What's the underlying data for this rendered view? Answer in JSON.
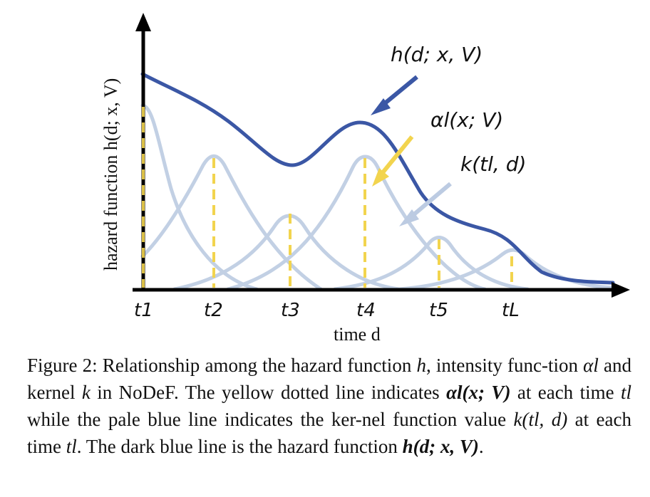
{
  "axes": {
    "y_label": "hazard function h(d; x, V)",
    "x_label": "time d"
  },
  "ticks": [
    "t1",
    "t2",
    "t3",
    "t4",
    "t5",
    "tL"
  ],
  "annotations": {
    "hazard": "h(d; x, V)",
    "intensity": "αl(x; V)",
    "kernel": "k(tl, d)"
  },
  "colors": {
    "hazard_line": "#3b57a5",
    "kernel_line": "#bccbe2",
    "intensity_line": "#f2d44e",
    "axis": "#000000"
  },
  "caption": {
    "prefix": "Figure 2: Relationship among the hazard function",
    "h": "h",
    "t1": ", intensity func-tion",
    "alpha": "αl",
    "t2": "and kernel",
    "k": "k",
    "t3": "in NoDeF. The yellow dotted line indicates",
    "alpha_full": "αl(x; V)",
    "t4": "at each time",
    "tl": "tl",
    "t5": "while the pale blue line indicates the ker-nel function value",
    "k_full": "k(tl, d)",
    "t6": "at each time",
    "tl2": "tl",
    "t7": ". The dark blue line is the hazard function",
    "h_full": "h(d; x, V)",
    "end": "."
  }
}
